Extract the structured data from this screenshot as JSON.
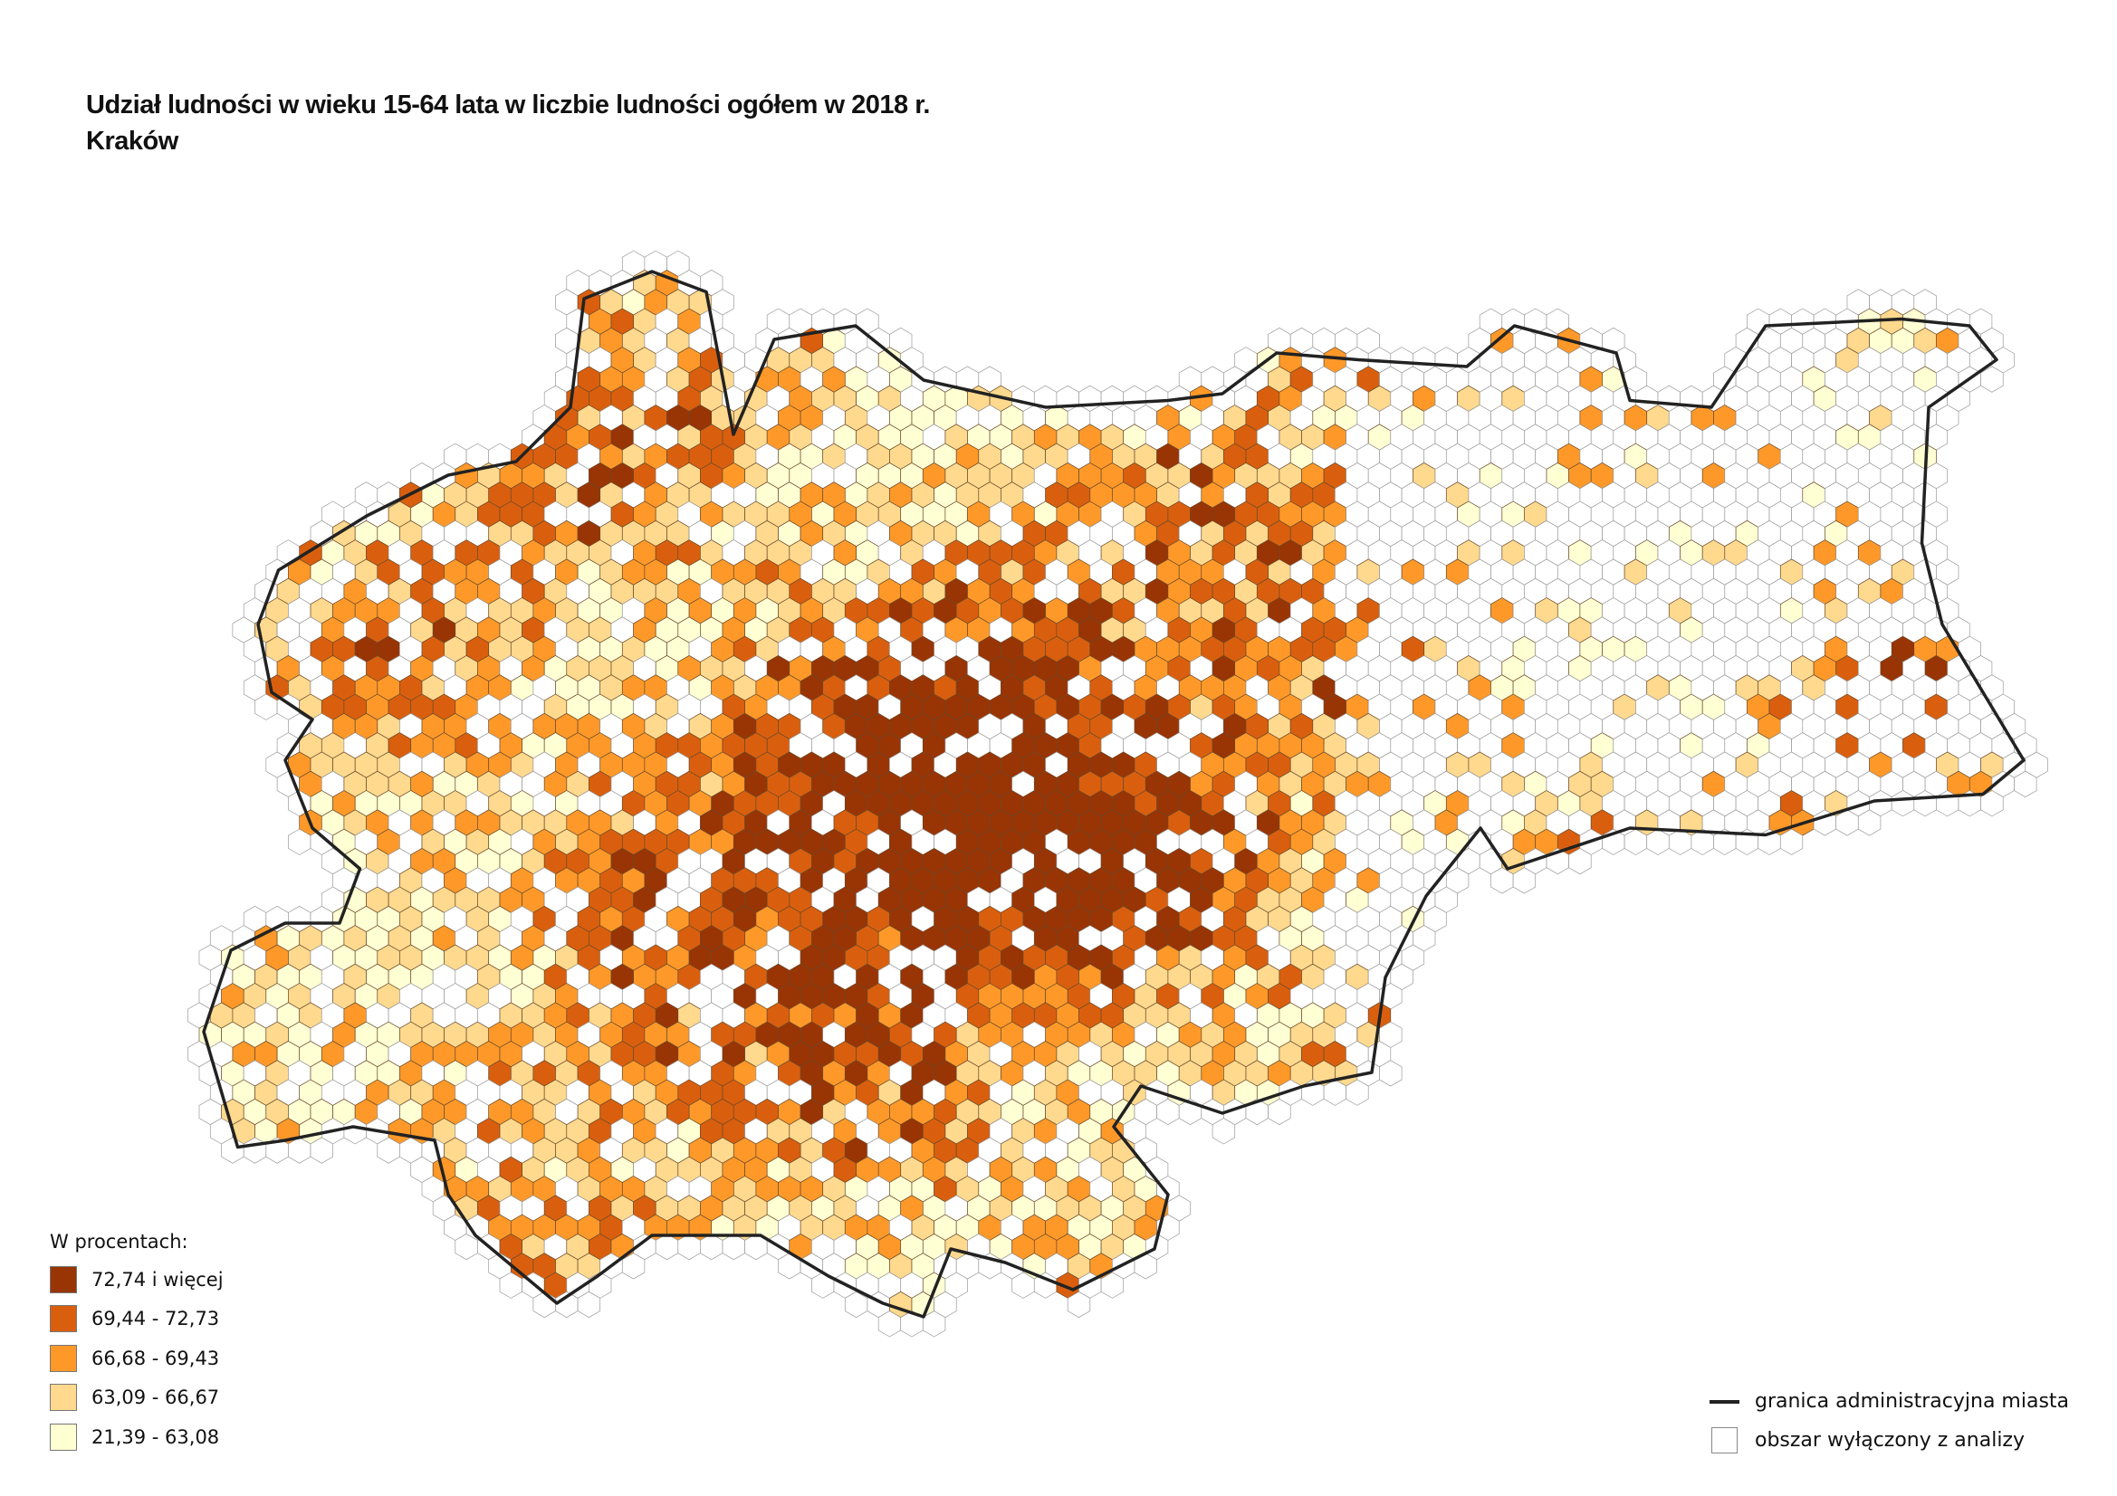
{
  "title": {
    "line1": "Udział ludności w wieku 15-64 lata w liczbie ludności ogółem w 2018 r.",
    "line2": "Kraków"
  },
  "legend": {
    "heading": "W procentach:",
    "classes": [
      {
        "label": "72,74 i więcej",
        "color": "#993404"
      },
      {
        "label": "69,44 - 72,73",
        "color": "#d95f0e"
      },
      {
        "label": "66,68 - 69,43",
        "color": "#fe9929"
      },
      {
        "label": "63,09 - 66,67",
        "color": "#fed98e"
      },
      {
        "label": "21,39 - 63,08",
        "color": "#ffffd4"
      }
    ]
  },
  "legend_other": {
    "boundary_label": "granica administracyjna miasta",
    "boundary_color": "#222222",
    "excluded_label": "obszar wyłączony z analizy",
    "excluded_color": "#ffffff"
  }
}
